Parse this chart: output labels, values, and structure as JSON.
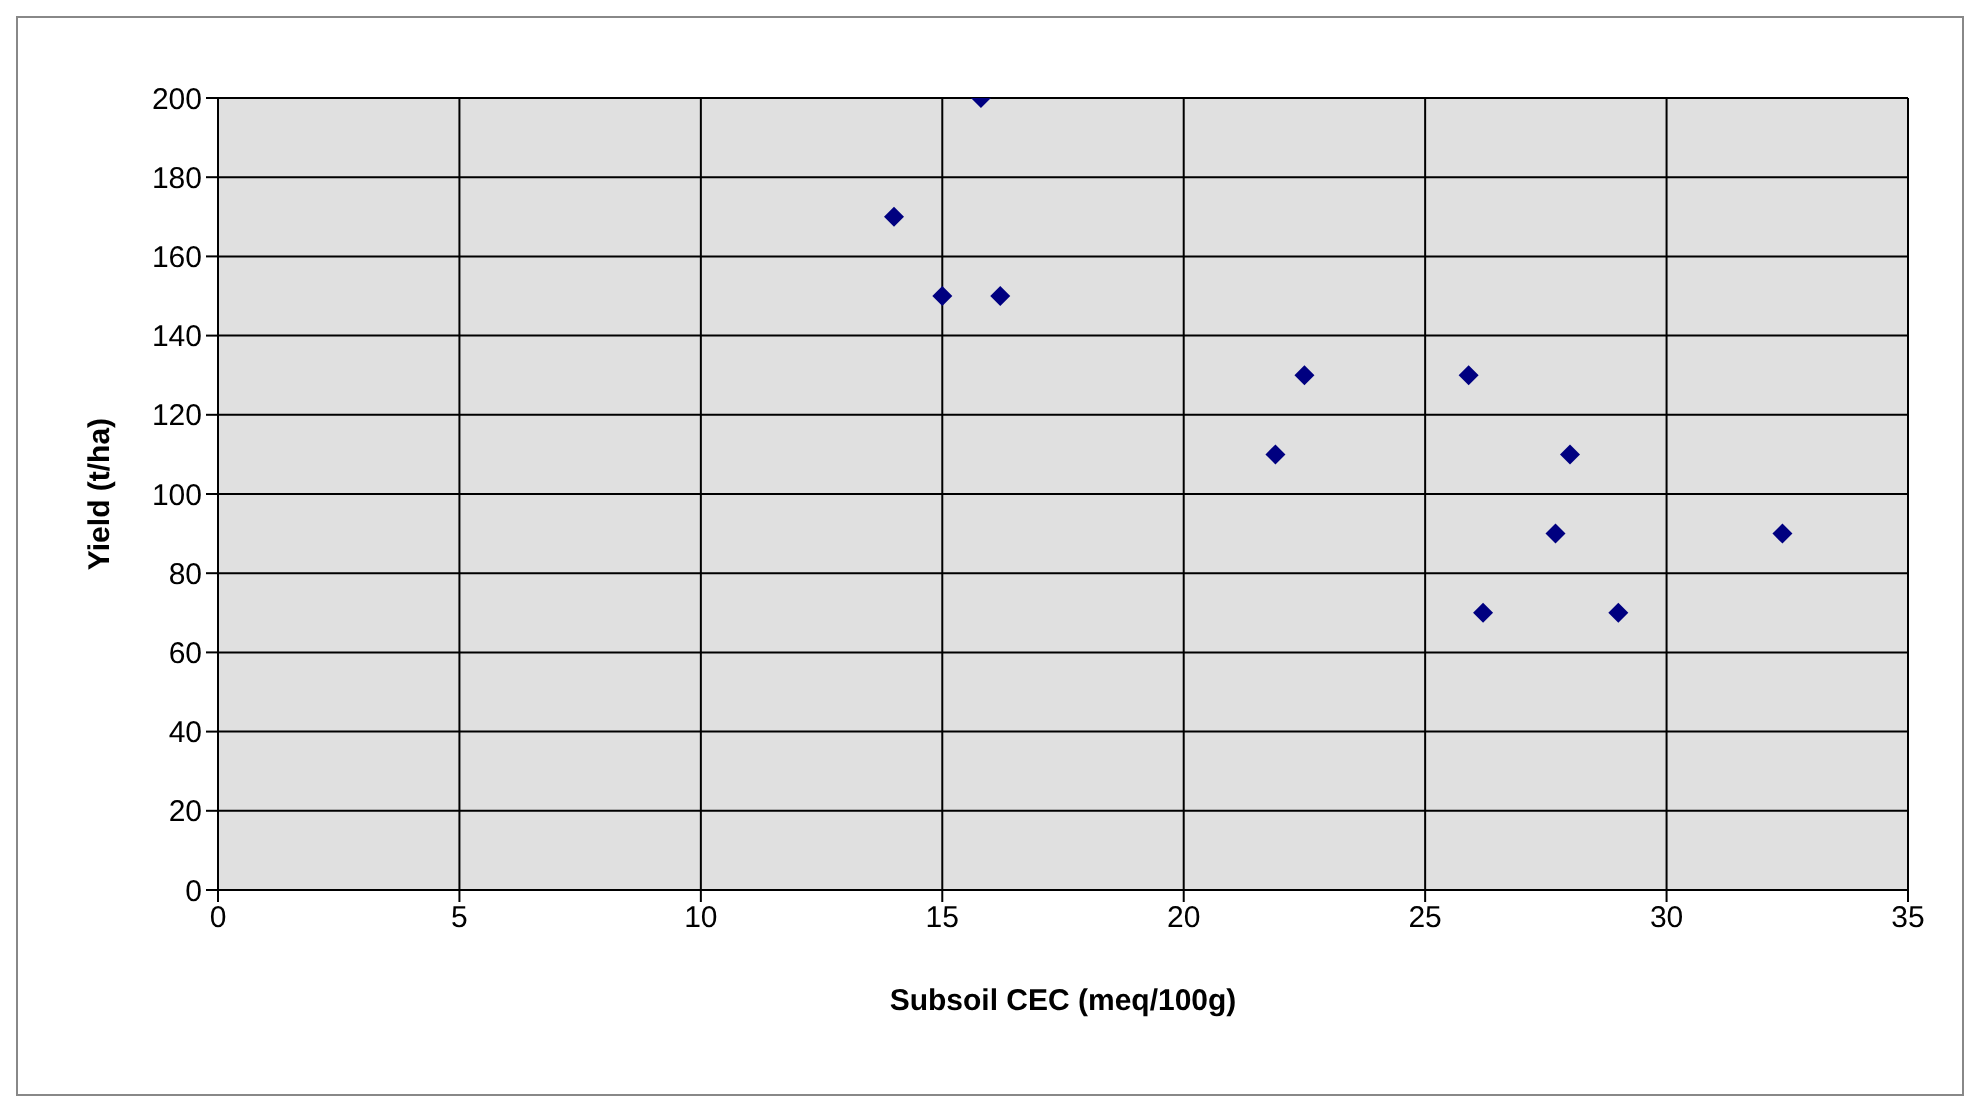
{
  "chart_data": {
    "type": "scatter",
    "xlabel": "Subsoil CEC (meq/100g)",
    "ylabel": "Yield (t/ha)",
    "x": [
      14,
      15,
      15.8,
      16.2,
      21.9,
      22.5,
      25.9,
      26.2,
      27.7,
      28,
      29,
      32.4
    ],
    "series": [
      {
        "color": "#000080",
        "values": [
          170,
          150,
          200,
          150,
          110,
          130,
          130,
          70,
          90,
          110,
          70,
          90
        ]
      }
    ],
    "xlim": [
      0,
      35
    ],
    "xticks": [
      0,
      5,
      10,
      15,
      20,
      25,
      30,
      35
    ],
    "ylim": [
      0,
      200
    ],
    "yticks": [
      0,
      20,
      40,
      60,
      80,
      100,
      120,
      140,
      160,
      180,
      200
    ],
    "grid": true,
    "marker": "diamond",
    "legend": false
  }
}
